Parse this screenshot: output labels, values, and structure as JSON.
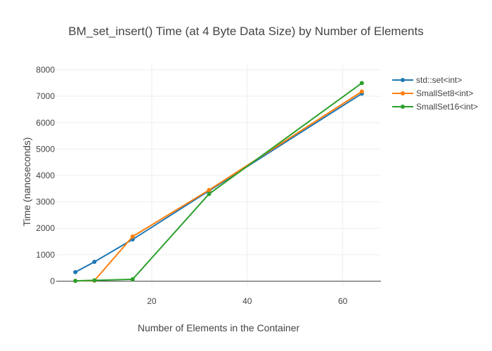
{
  "chart_data": {
    "type": "line",
    "title": "BM_set_insert() Time (at 4 Byte Data Size) by Number of Elements",
    "xlabel": "Number of Elements in the Container",
    "ylabel": "Time (nanoseconds)",
    "xlim": [
      0,
      68
    ],
    "ylim": [
      -200,
      8200
    ],
    "xticks": [
      20,
      40,
      60
    ],
    "yticks": [
      0,
      1000,
      2000,
      3000,
      4000,
      5000,
      6000,
      7000,
      8000
    ],
    "grid": true,
    "legend_position": "top-right",
    "series": [
      {
        "name": "std::set<int>",
        "color": "#1f77b4",
        "x": [
          4,
          8,
          16,
          32,
          64
        ],
        "values": [
          340,
          730,
          1580,
          3420,
          7100
        ]
      },
      {
        "name": "SmallSet8<int>",
        "color": "#ff7f0e",
        "x": [
          4,
          8,
          16,
          32,
          64
        ],
        "values": [
          10,
          20,
          1690,
          3450,
          7180
        ]
      },
      {
        "name": "SmallSet16<int>",
        "color": "#2ca02c",
        "x": [
          4,
          8,
          16,
          32,
          64
        ],
        "values": [
          10,
          30,
          70,
          3300,
          7500
        ]
      }
    ]
  }
}
